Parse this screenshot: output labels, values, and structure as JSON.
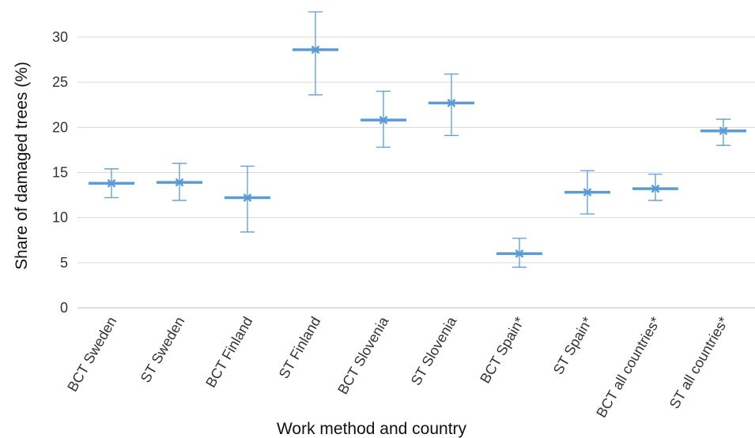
{
  "chart_data": {
    "type": "error-bar",
    "xlabel": "Work method and country",
    "ylabel": "Share of damaged trees  (%)",
    "ylim": [
      0,
      30
    ],
    "yticks": [
      0,
      5,
      10,
      15,
      20,
      25,
      30
    ],
    "grid": true,
    "categories": [
      "BCT Sweden",
      "ST Sweden",
      "BCT Finland",
      "ST Finland",
      "BCT Slovenia",
      "ST Slovenia",
      "BCT Spain*",
      "ST Spain*",
      "BCT all countries*",
      "ST all countries*"
    ],
    "values": [
      13.8,
      13.9,
      12.2,
      28.6,
      20.8,
      22.7,
      6.0,
      12.8,
      13.2,
      19.6
    ],
    "lower": [
      12.2,
      11.9,
      8.4,
      23.6,
      17.8,
      19.1,
      4.5,
      10.4,
      11.9,
      18.0
    ],
    "upper": [
      15.4,
      16.0,
      15.7,
      32.8,
      24.0,
      25.9,
      7.7,
      15.2,
      14.8,
      20.9
    ],
    "color": "#5b9bd5"
  }
}
